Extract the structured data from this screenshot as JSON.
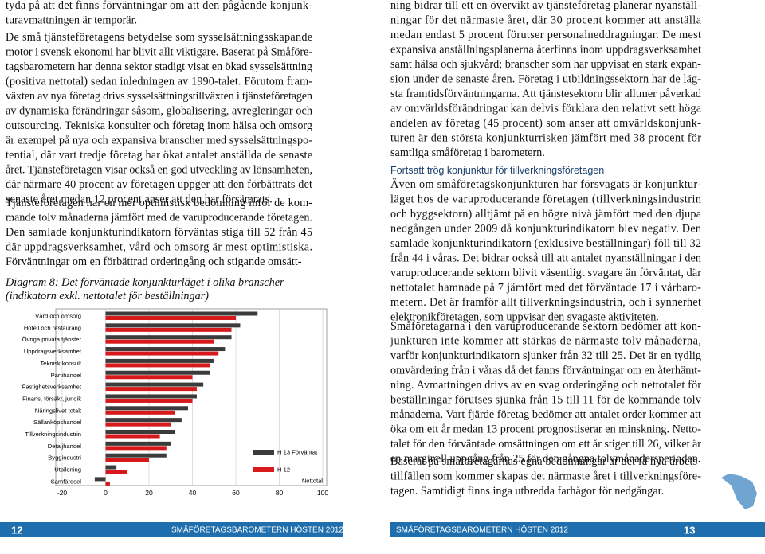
{
  "left_column": {
    "paragraphs": [
      [
        "tyda på att det finns förväntningar om att den pågående konjunk-",
        "turavmattningen är temporär."
      ],
      [
        "De små tjänsteföretagens betydelse som sysselsättningsskapande",
        "motor i svensk ekonomi har blivit allt viktigare. Baserat på Småföre-",
        "tagsbarometern har denna sektor stadigt visat en ökad sysselsättning",
        "(positiva nettotal) sedan inledningen av 1990-talet. Förutom fram-",
        "växten av nya företag drivs sysselsättningstillväxten i tjänsteföretagen",
        "av dynamiska förändringar såsom, globalisering, avregleringar och",
        "outsourcing. Tekniska konsulter och företag inom hälsa och omsorg",
        "är exempel på nya och expansiva branscher med sysselsättningspo-",
        "tential, där vart tredje företag har ökat antalet anställda de senaste",
        "året. Tjänsteföretagen visar också en god utveckling av lönsamheten,",
        "där närmare 40 procent av företagen uppger att den förbättrats det",
        "senaste året medan 12 procent anser att den har försämrats."
      ],
      [
        "Tjänsteföretagen har en mer optimistisk bedömning inför de kom-",
        "mande tolv månaderna jämfört med de varuproducerande företagen.",
        "Den samlade konjunkturindikatorn förväntas stiga till 52 från 45",
        "där uppdragsverksamhet, vård och omsorg är mest optimistiska.",
        "Förväntningar om en förbättrad orderingång och stigande omsätt-"
      ]
    ]
  },
  "right_column": {
    "heading": "Fortsatt trög konjunktur för tillverkningsföretagen",
    "paragraphs": [
      [
        "ning bidrar till ett en övervikt av tjänsteföretag planerar nyanställ-",
        "ningar för det närmaste året, där 30 procent kommer att anställa",
        "medan endast 5 procent förutser personalneddragningar. De mest",
        "expansiva anställningsplanerna återfinns inom uppdragsverksamhet",
        "samt hälsa och sjukvård; branscher som har uppvisat en stark expan-",
        "sion under de senaste åren. Företag i utbildningssektorn har de läg-",
        "sta framtidsförväntningarna. Att tjänstesektorn blir alltmer påverkad",
        "av omvärldsförändringar kan delvis förklara den relativt sett höga",
        "andelen av företag (45 procent) som anser att omvärldskonjunk-",
        "turen är den största konjunkturrisken jämfört med 38 procent för",
        "samtliga småföretag i barometern."
      ],
      [
        "Även om småföretagskonjunkturen har försvagats är konjunktur-",
        "läget hos de varuproducerande företagen (tillverkningsindustrin",
        "och byggsektorn) alltjämt på en högre nivå jämfört med den djupa",
        "nedgången under 2009 då konjunkturindikatorn blev negativ. Den",
        "samlade konjunkturindikatorn (exklusive beställningar) föll till 32",
        "från 44 i våras. Det bidrar också till att antalet nyanställningar i den",
        "varuproducerande sektorn blivit väsentligt svagare än förväntat, där",
        "nettotalet hamnade på 7 jämfört med det förväntade 17 i vårbaro-",
        "metern. Det är framför allt tillverkningsindustrin, och i synnerhet",
        "elektronikföretagen, som uppvisar den svagaste aktiviteten."
      ],
      [
        "Småföretagarna i den varuproducerande sektorn bedömer att kon-",
        "junkturen inte kommer att stärkas de närmaste tolv månaderna,",
        "varför konjunkturindikatorn sjunker från 32 till 25. Det är en tydlig",
        "omvärdering från i våras då det fanns förväntningar om en återhämt-",
        "ning. Avmattningen drivs av en svag orderingång och nettotalet för",
        "beställningar förutses sjunka från 15 till 11 för de kommande tolv",
        "månaderna. Vart fjärde företag bedömer att antalet order kommer att",
        "öka om ett år medan 13 procent prognostiserar en minskning. Netto-",
        "talet för den förväntade omsättningen om ett år stiger till 26, vilket är",
        "en marginell uppgång från 25 för den gångna tolvmånadersperioden."
      ],
      [
        "Baserat på småföretagarnas egna bedömningar är det få nya arbets-",
        "tillfällen som kommer skapas det närmaste året i tillverkningsföre-",
        "tagen. Samtidigt finns inga utbredda farhågor för nedgångar."
      ]
    ]
  },
  "chart_data": {
    "type": "hbar",
    "title": "Diagram 8: Det förväntade konjunkturläget i olika branscher",
    "subtitle": "(indikatorn exkl. nettotalet för beställningar)",
    "x_label": "Nettotal",
    "categories": [
      "Vård och omsorg",
      "Hotell och restaurang",
      "Övriga privata tjänster",
      "Uppdragsverksamhet",
      "Teknisk konsult",
      "Partihandel",
      "Fastighetsverksamhet",
      "Finans, försäkr, juridik",
      "Näringslivet totalt",
      "Sällanköpshandel",
      "Tillverkningsindustrin",
      "Detaljhandel",
      "Byggindustri",
      "Utbildning",
      "Samfärdsel"
    ],
    "series": [
      {
        "name": "H 13 Förväntat",
        "color": "#3b3b3b",
        "values": [
          70,
          62,
          58,
          55,
          50,
          48,
          45,
          42,
          38,
          35,
          32,
          30,
          28,
          5,
          -5
        ]
      },
      {
        "name": "H 12",
        "color": "#d7191c",
        "values": [
          60,
          58,
          50,
          52,
          48,
          40,
          42,
          40,
          32,
          30,
          25,
          28,
          20,
          10,
          2
        ]
      }
    ],
    "xlim": [
      -20,
      100
    ],
    "xticks": [
      -20,
      0,
      20,
      40,
      60,
      80,
      100
    ],
    "grid": true
  },
  "footer": {
    "left_page_number": "12",
    "left_title": "SMÅFÖRETAGSBAROMETERN HÖSTEN 2012",
    "right_title": "SMÅFÖRETAGSBAROMETERN HÖSTEN 2012",
    "right_page_number": "13"
  }
}
